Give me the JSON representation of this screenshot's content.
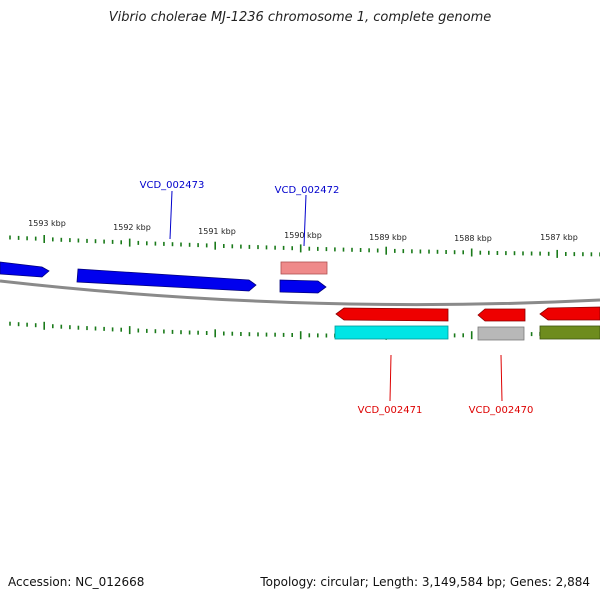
{
  "title": "Vibrio cholerae MJ-1236 chromosome 1, complete genome",
  "accession": "Accession: NC_012668",
  "summary": "Topology: circular; Length: 3,149,584 bp; Genes: 2,884",
  "colors": {
    "backbone": "#8a8a8a",
    "tick": "#1a7a1a",
    "forward_label": "#0000cc",
    "reverse_label": "#dd0000",
    "forward_cds": "#0000ee",
    "reverse_cds": "#ee0000",
    "trna": "#ef8a8a",
    "cyan_feature": "#00e5e5",
    "gray_feature": "#b8b8b8",
    "olive_feature": "#6e8c1e"
  },
  "ticks": {
    "labels": [
      "1593 kbp",
      "1592 kbp",
      "1591 kbp",
      "1590 kbp",
      "1589 kbp",
      "1588 kbp",
      "1587 kbp"
    ]
  },
  "gene_labels": {
    "forward": [
      "VCD_002473",
      "VCD_002472"
    ],
    "reverse": [
      "VCD_002471",
      "VCD_002470"
    ]
  }
}
